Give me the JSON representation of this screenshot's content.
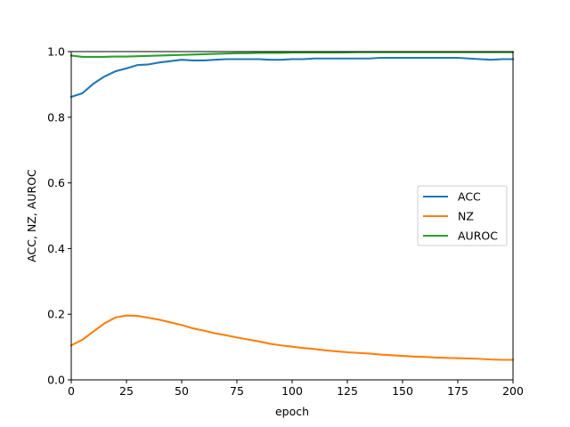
{
  "chart_data": {
    "type": "line",
    "title": "",
    "xlabel": "epoch",
    "ylabel": "ACC, NZ, AUROC",
    "xlim": [
      0,
      200
    ],
    "ylim": [
      0,
      1.0
    ],
    "x_ticks": [
      0,
      25,
      50,
      75,
      100,
      125,
      150,
      175,
      200
    ],
    "x_tick_labels": [
      "0",
      "25",
      "50",
      "75",
      "100",
      "125",
      "150",
      "175",
      "200"
    ],
    "y_ticks": [
      0,
      0.2,
      0.4,
      0.6,
      0.8,
      1.0
    ],
    "y_tick_labels": [
      "0.0",
      "0.2",
      "0.4",
      "0.6",
      "0.8",
      "1.0"
    ],
    "grid": false,
    "legend_position": "center-right",
    "series": [
      {
        "name": "ACC",
        "color": "#1f77b4",
        "x": [
          0,
          5,
          10,
          15,
          20,
          25,
          30,
          35,
          40,
          45,
          50,
          55,
          60,
          65,
          70,
          75,
          80,
          85,
          90,
          95,
          100,
          105,
          110,
          115,
          120,
          125,
          130,
          135,
          140,
          145,
          150,
          155,
          160,
          165,
          170,
          175,
          180,
          185,
          190,
          195,
          200
        ],
        "y": [
          0.862,
          0.873,
          0.902,
          0.924,
          0.94,
          0.949,
          0.959,
          0.961,
          0.967,
          0.971,
          0.975,
          0.973,
          0.973,
          0.975,
          0.977,
          0.977,
          0.977,
          0.977,
          0.975,
          0.975,
          0.977,
          0.977,
          0.979,
          0.979,
          0.979,
          0.979,
          0.979,
          0.979,
          0.981,
          0.981,
          0.981,
          0.981,
          0.981,
          0.981,
          0.981,
          0.981,
          0.979,
          0.977,
          0.975,
          0.977,
          0.977
        ]
      },
      {
        "name": "NZ",
        "color": "#ff7f0e",
        "x": [
          0,
          5,
          10,
          15,
          20,
          25,
          30,
          35,
          40,
          45,
          50,
          55,
          60,
          65,
          70,
          75,
          80,
          85,
          90,
          95,
          100,
          105,
          110,
          115,
          120,
          125,
          130,
          135,
          140,
          145,
          150,
          155,
          160,
          165,
          170,
          175,
          180,
          185,
          190,
          195,
          200
        ],
        "y": [
          0.105,
          0.122,
          0.147,
          0.172,
          0.19,
          0.196,
          0.195,
          0.189,
          0.183,
          0.175,
          0.167,
          0.157,
          0.15,
          0.142,
          0.136,
          0.129,
          0.123,
          0.117,
          0.11,
          0.105,
          0.101,
          0.097,
          0.094,
          0.09,
          0.087,
          0.084,
          0.082,
          0.08,
          0.077,
          0.075,
          0.073,
          0.071,
          0.07,
          0.068,
          0.067,
          0.066,
          0.065,
          0.064,
          0.062,
          0.061,
          0.061
        ]
      },
      {
        "name": "AUROC",
        "color": "#2ca02c",
        "x": [
          0,
          5,
          10,
          15,
          20,
          25,
          30,
          35,
          40,
          45,
          50,
          55,
          60,
          65,
          70,
          75,
          80,
          85,
          90,
          95,
          100,
          110,
          120,
          130,
          140,
          150,
          160,
          170,
          180,
          190,
          200
        ],
        "y": [
          0.988,
          0.984,
          0.984,
          0.984,
          0.985,
          0.985,
          0.986,
          0.987,
          0.988,
          0.989,
          0.99,
          0.991,
          0.992,
          0.993,
          0.994,
          0.995,
          0.995,
          0.996,
          0.996,
          0.996,
          0.997,
          0.997,
          0.997,
          0.998,
          0.998,
          0.998,
          0.998,
          0.998,
          0.998,
          0.998,
          0.998
        ]
      }
    ]
  }
}
